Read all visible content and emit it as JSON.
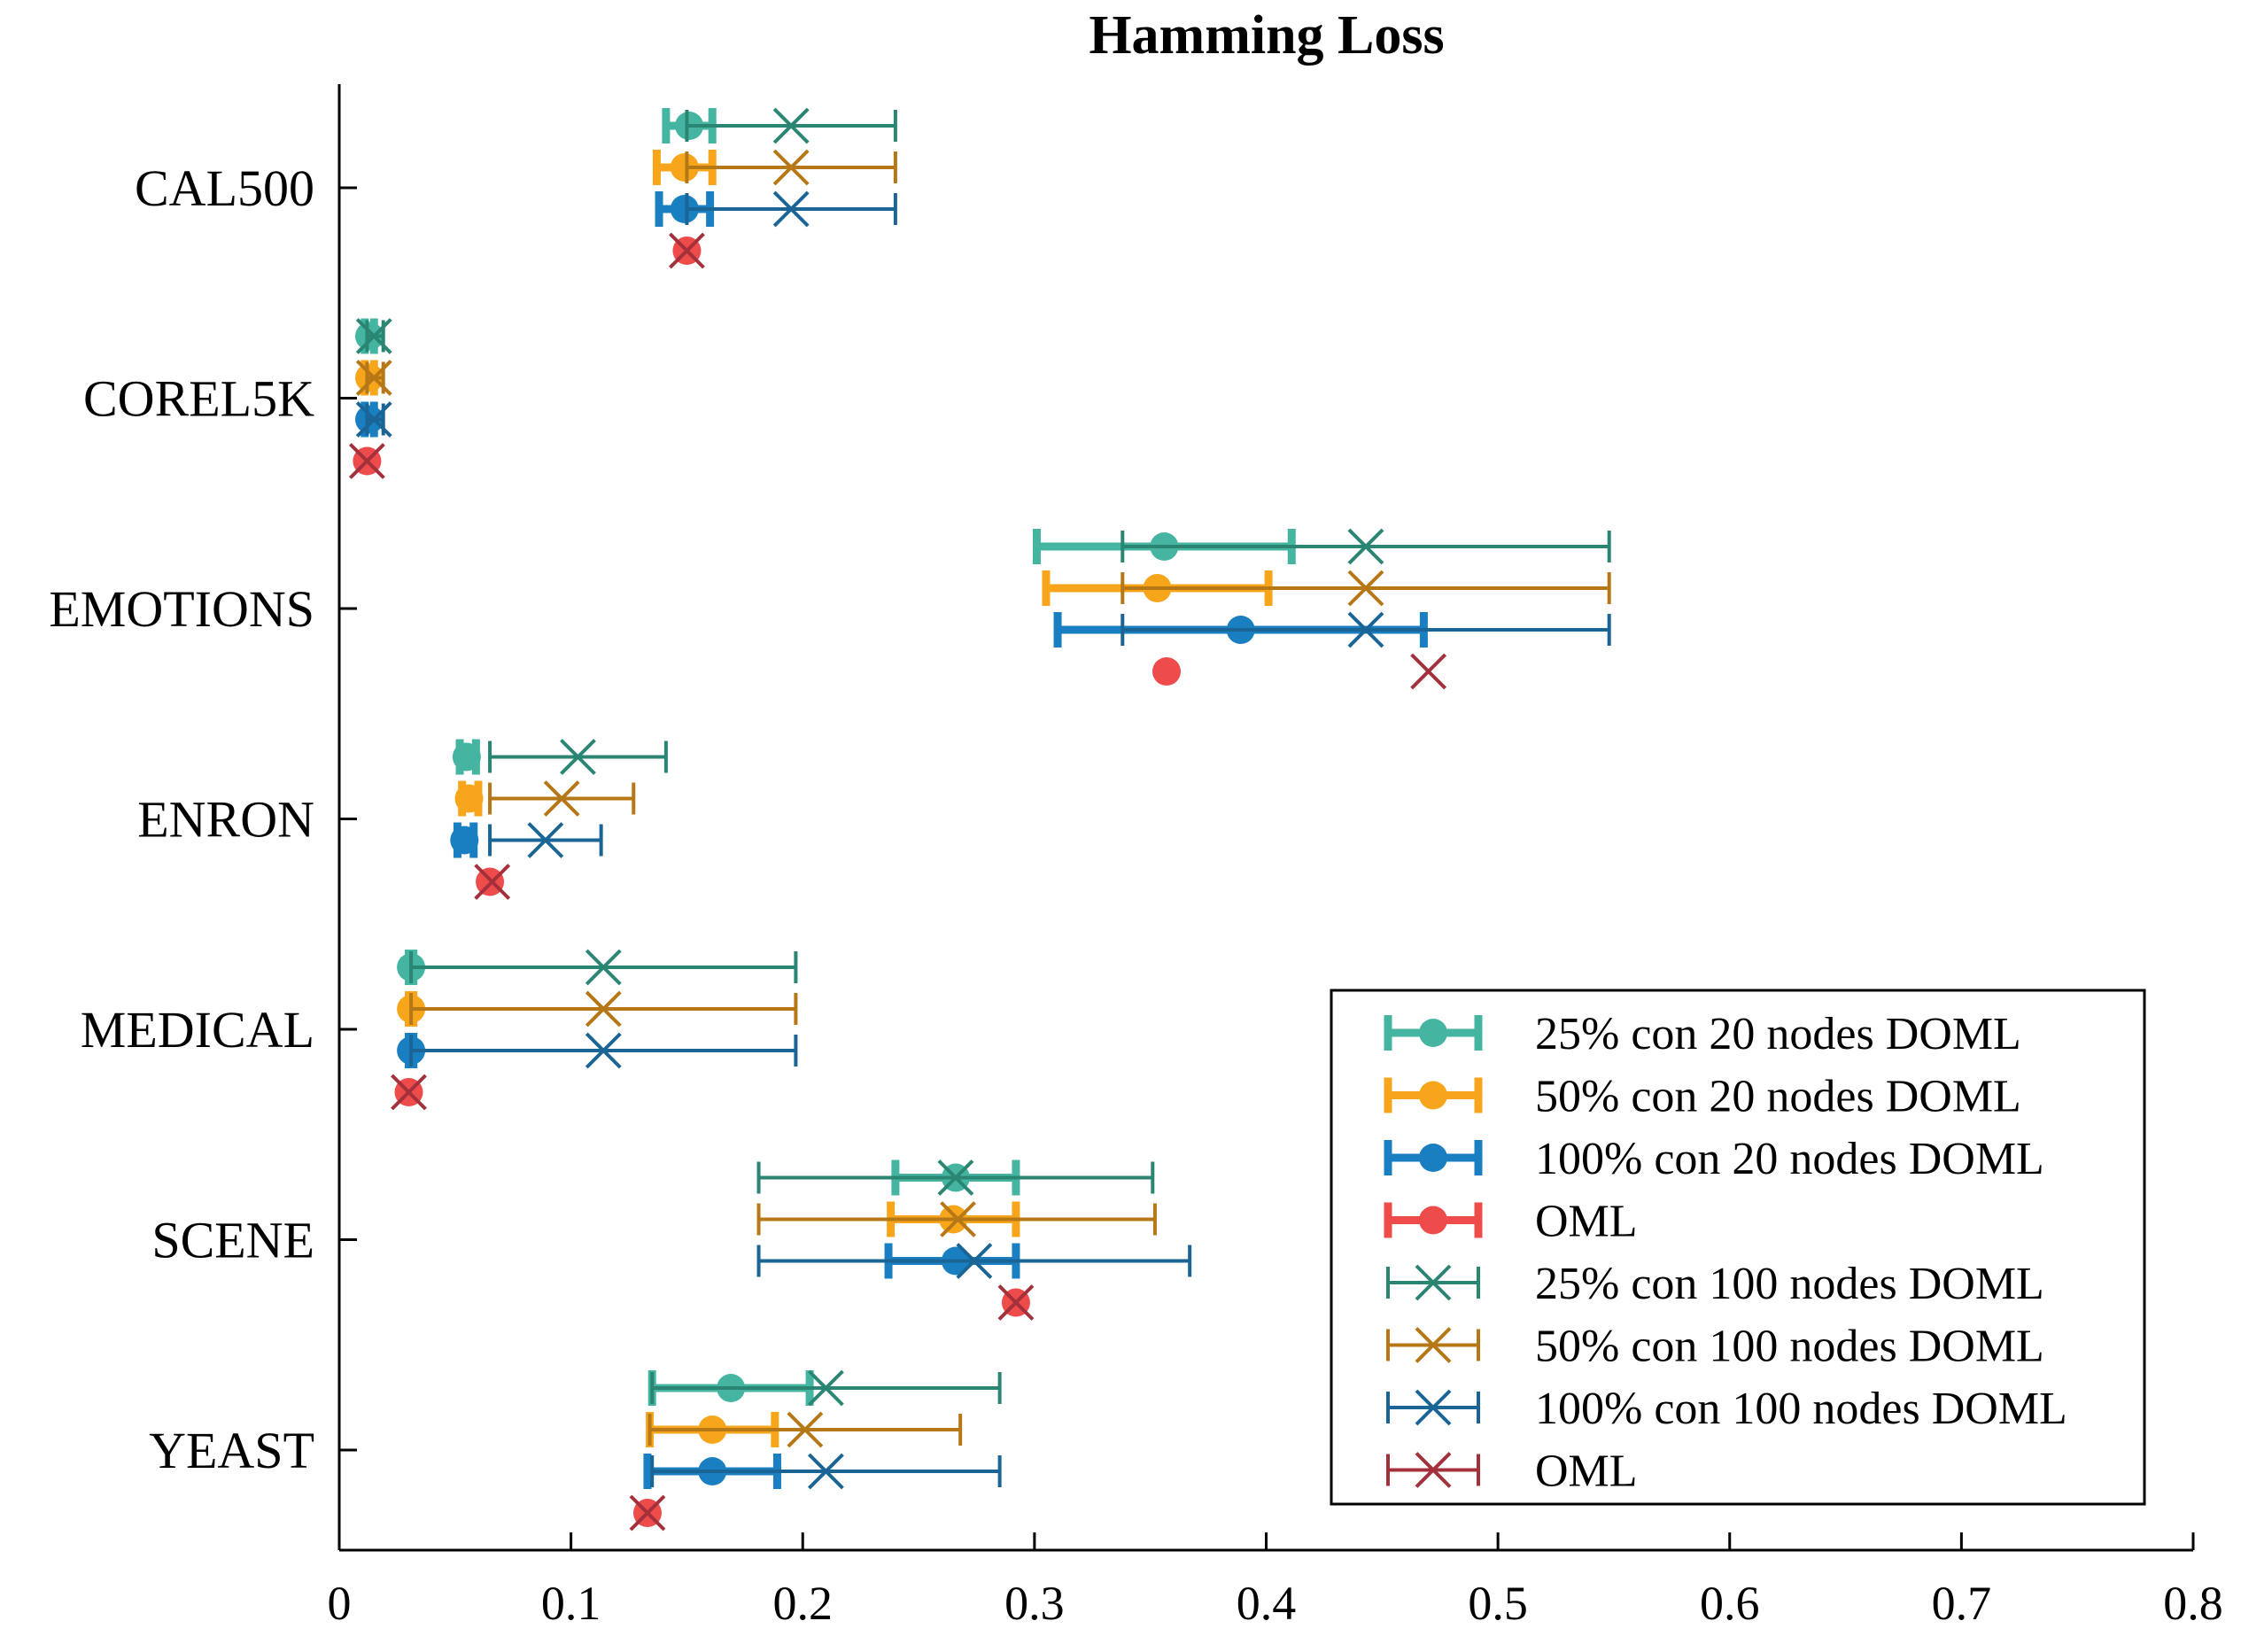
{
  "chart_data": {
    "type": "errorbar",
    "title": "Hamming Loss",
    "xlabel": "",
    "ylabel": "",
    "xlim": [
      0,
      0.8
    ],
    "xticks": [
      "0",
      "0.1",
      "0.2",
      "0.3",
      "0.4",
      "0.5",
      "0.6",
      "0.7",
      "0.8"
    ],
    "xtick_values": [
      0,
      0.1,
      0.2,
      0.3,
      0.4,
      0.5,
      0.6,
      0.7,
      0.8
    ],
    "categories": [
      "CAL500",
      "COREL5K",
      "EMOTIONS",
      "ENRON",
      "MEDICAL",
      "SCENE",
      "YEAST"
    ],
    "legend_position": "bottom-right",
    "series": [
      {
        "name": "25% con 20 nodes DOML",
        "marker": "circle",
        "color": "#45B5A2",
        "style": "thick",
        "slot": 0,
        "points": [
          {
            "center": 0.151,
            "low": 0.141,
            "high": 0.161
          },
          {
            "center": 0.013,
            "low": 0.011,
            "high": 0.015
          },
          {
            "center": 0.356,
            "low": 0.301,
            "high": 0.411
          },
          {
            "center": 0.055,
            "low": 0.052,
            "high": 0.059
          },
          {
            "center": 0.031,
            "low": 0.03,
            "high": 0.032
          },
          {
            "center": 0.266,
            "low": 0.24,
            "high": 0.292
          },
          {
            "center": 0.169,
            "low": 0.135,
            "high": 0.203
          }
        ]
      },
      {
        "name": "50% con 20 nodes DOML",
        "marker": "circle",
        "color": "#F7A61C",
        "style": "thick",
        "slot": 1,
        "points": [
          {
            "center": 0.149,
            "low": 0.137,
            "high": 0.161
          },
          {
            "center": 0.013,
            "low": 0.011,
            "high": 0.015
          },
          {
            "center": 0.353,
            "low": 0.305,
            "high": 0.401
          },
          {
            "center": 0.056,
            "low": 0.053,
            "high": 0.06
          },
          {
            "center": 0.031,
            "low": 0.03,
            "high": 0.032
          },
          {
            "center": 0.265,
            "low": 0.238,
            "high": 0.292
          },
          {
            "center": 0.161,
            "low": 0.134,
            "high": 0.188
          }
        ]
      },
      {
        "name": "100% con 20 nodes DOML",
        "marker": "circle",
        "color": "#1A7FC1",
        "style": "thick",
        "slot": 2,
        "points": [
          {
            "center": 0.149,
            "low": 0.138,
            "high": 0.16
          },
          {
            "center": 0.013,
            "low": 0.011,
            "high": 0.015
          },
          {
            "center": 0.389,
            "low": 0.31,
            "high": 0.468
          },
          {
            "center": 0.054,
            "low": 0.051,
            "high": 0.058
          },
          {
            "center": 0.031,
            "low": 0.03,
            "high": 0.032
          },
          {
            "center": 0.266,
            "low": 0.237,
            "high": 0.292
          },
          {
            "center": 0.161,
            "low": 0.133,
            "high": 0.189
          }
        ]
      },
      {
        "name": "OML",
        "marker": "circle",
        "color": "#EE4B4B",
        "style": "thick",
        "slot": 3,
        "points": [
          {
            "center": 0.15,
            "low": 0.15,
            "high": 0.15
          },
          {
            "center": 0.012,
            "low": 0.012,
            "high": 0.012
          },
          {
            "center": 0.357,
            "low": 0.357,
            "high": 0.357
          },
          {
            "center": 0.065,
            "low": 0.065,
            "high": 0.065
          },
          {
            "center": 0.03,
            "low": 0.03,
            "high": 0.03
          },
          {
            "center": 0.292,
            "low": 0.292,
            "high": 0.292
          },
          {
            "center": 0.133,
            "low": 0.133,
            "high": 0.133
          }
        ]
      },
      {
        "name": "25% con 100 nodes DOML",
        "marker": "x",
        "color": "#2A8573",
        "style": "thin",
        "slot": 0,
        "points": [
          {
            "center": 0.195,
            "low": 0.15,
            "high": 0.24
          },
          {
            "center": 0.015,
            "low": 0.012,
            "high": 0.019
          },
          {
            "center": 0.443,
            "low": 0.338,
            "high": 0.548
          },
          {
            "center": 0.103,
            "low": 0.065,
            "high": 0.141
          },
          {
            "center": 0.114,
            "low": 0.031,
            "high": 0.197
          },
          {
            "center": 0.266,
            "low": 0.181,
            "high": 0.351
          },
          {
            "center": 0.21,
            "low": 0.135,
            "high": 0.285
          }
        ]
      },
      {
        "name": "50% con 100 nodes DOML",
        "marker": "x",
        "color": "#B67716",
        "style": "thin",
        "slot": 1,
        "points": [
          {
            "center": 0.195,
            "low": 0.15,
            "high": 0.24
          },
          {
            "center": 0.015,
            "low": 0.012,
            "high": 0.019
          },
          {
            "center": 0.443,
            "low": 0.338,
            "high": 0.548
          },
          {
            "center": 0.096,
            "low": 0.065,
            "high": 0.127
          },
          {
            "center": 0.114,
            "low": 0.031,
            "high": 0.197
          },
          {
            "center": 0.267,
            "low": 0.181,
            "high": 0.352
          },
          {
            "center": 0.201,
            "low": 0.134,
            "high": 0.268
          }
        ]
      },
      {
        "name": "100% con 100 nodes DOML",
        "marker": "x",
        "color": "#1A6496",
        "style": "thin",
        "slot": 2,
        "points": [
          {
            "center": 0.195,
            "low": 0.15,
            "high": 0.24
          },
          {
            "center": 0.015,
            "low": 0.012,
            "high": 0.019
          },
          {
            "center": 0.443,
            "low": 0.338,
            "high": 0.548
          },
          {
            "center": 0.089,
            "low": 0.065,
            "high": 0.113
          },
          {
            "center": 0.114,
            "low": 0.031,
            "high": 0.197
          },
          {
            "center": 0.274,
            "low": 0.181,
            "high": 0.367
          },
          {
            "center": 0.21,
            "low": 0.135,
            "high": 0.285
          }
        ]
      },
      {
        "name": "OML",
        "marker": "x",
        "color": "#A3303A",
        "style": "thin",
        "slot": 3,
        "points": [
          {
            "center": 0.15,
            "low": 0.15,
            "high": 0.15
          },
          {
            "center": 0.012,
            "low": 0.012,
            "high": 0.012
          },
          {
            "center": 0.47,
            "low": 0.47,
            "high": 0.47
          },
          {
            "center": 0.066,
            "low": 0.066,
            "high": 0.066
          },
          {
            "center": 0.03,
            "low": 0.03,
            "high": 0.03
          },
          {
            "center": 0.292,
            "low": 0.292,
            "high": 0.292
          },
          {
            "center": 0.133,
            "low": 0.133,
            "high": 0.133
          }
        ]
      }
    ]
  }
}
